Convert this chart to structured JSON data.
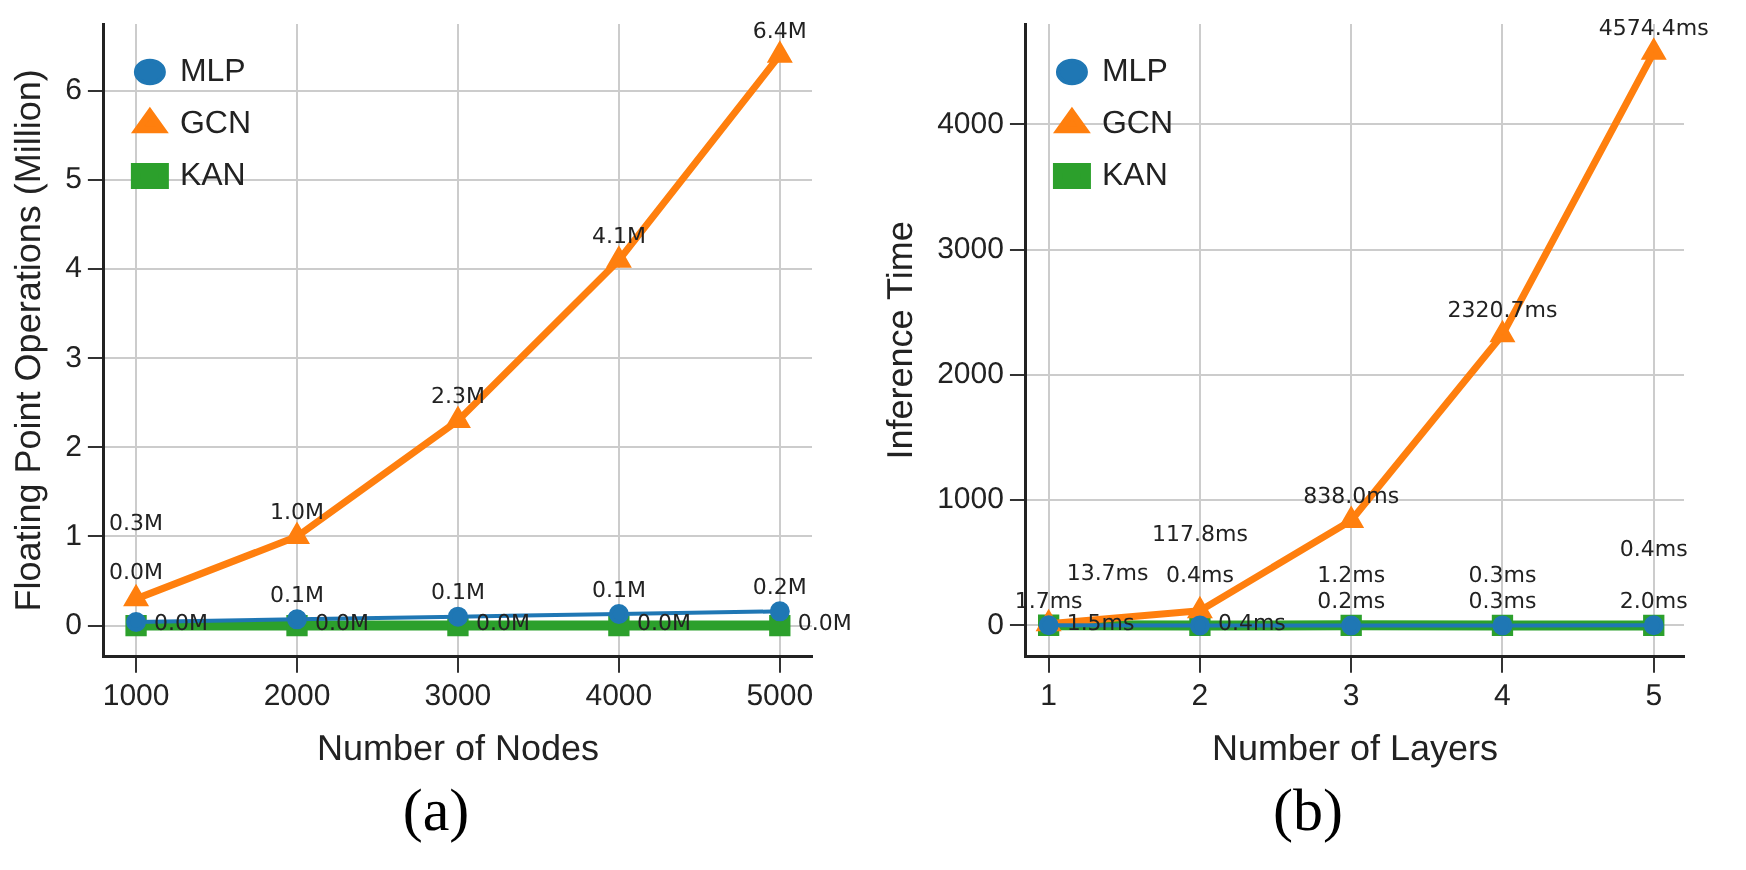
{
  "chart_data": [
    {
      "type": "line",
      "xlabel": "Number of Nodes",
      "ylabel": "Floating Point Operations (Million)",
      "annotations": [
        "(a)"
      ],
      "x": [
        1000,
        2000,
        3000,
        4000,
        5000
      ],
      "xlim": [
        800,
        5200
      ],
      "xticks": [
        1000,
        2000,
        3000,
        4000,
        5000
      ],
      "ylim": [
        -0.35,
        6.75
      ],
      "yticks": [
        0,
        1,
        2,
        3,
        4,
        5,
        6
      ],
      "grid": true,
      "legend": "top left",
      "series": [
        {
          "name": "MLP",
          "color": "#1f77b4",
          "marker": "circle",
          "values": [
            0.04,
            0.07,
            0.1,
            0.13,
            0.16
          ],
          "value_labels": [
            "0.0M",
            "0.1M",
            "0.1M",
            "0.1M",
            "0.2M"
          ]
        },
        {
          "name": "GCN",
          "color": "#ff7f0e",
          "marker": "triangle",
          "values": [
            0.3,
            1.0,
            2.3,
            4.1,
            6.4
          ],
          "value_labels": [
            "0.3M",
            "1.0M",
            "2.3M",
            "4.1M",
            "6.4M"
          ]
        },
        {
          "name": "KAN",
          "color": "#2ca02c",
          "marker": "square",
          "values": [
            0.0,
            0.0,
            0.0,
            0.0,
            0.0
          ],
          "value_labels": [
            "0.0M",
            "0.0M",
            "0.0M",
            "0.0M",
            "0.0M"
          ]
        }
      ]
    },
    {
      "type": "line",
      "xlabel": "Number of Layers",
      "ylabel": "Inference Time",
      "annotations": [
        "(b)"
      ],
      "x": [
        1,
        2,
        3,
        4,
        5
      ],
      "xlim": [
        0.85,
        5.2
      ],
      "xticks": [
        1,
        2,
        3,
        4,
        5
      ],
      "ylim": [
        -250,
        4800
      ],
      "yticks": [
        0,
        1000,
        2000,
        3000,
        4000
      ],
      "grid": true,
      "legend": "top left",
      "series": [
        {
          "name": "MLP",
          "color": "#1f77b4",
          "marker": "circle",
          "values": [
            1.5,
            0.4,
            0.2,
            0.3,
            2.0
          ],
          "value_labels": [
            "1.5ms",
            "0.4ms",
            "0.2ms",
            "0.3ms",
            "2.0ms"
          ]
        },
        {
          "name": "GCN",
          "color": "#ff7f0e",
          "marker": "triangle",
          "values": [
            13.7,
            117.8,
            838.0,
            2320.7,
            4574.4
          ],
          "value_labels": [
            "13.7ms",
            "117.8ms",
            "838.0ms",
            "2320.7ms",
            "4574.4ms"
          ]
        },
        {
          "name": "KAN",
          "color": "#2ca02c",
          "marker": "square",
          "values": [
            1.7,
            0.4,
            1.2,
            0.3,
            0.4
          ],
          "value_labels": [
            "1.7ms",
            "0.4ms",
            "1.2ms",
            "0.3ms",
            "0.4ms"
          ]
        }
      ]
    }
  ]
}
